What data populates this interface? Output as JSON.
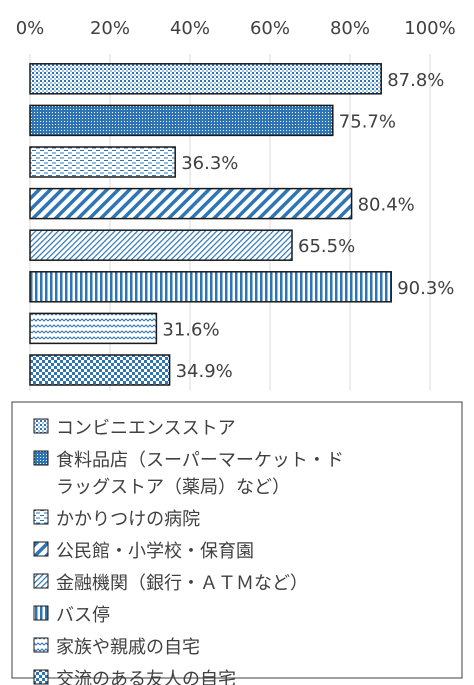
{
  "chart_data": {
    "type": "bar",
    "orientation": "horizontal",
    "xlim": [
      0,
      100
    ],
    "xticks": [
      "0%",
      "20%",
      "40%",
      "60%",
      "80%",
      "100%"
    ],
    "tick_values": [
      0,
      20,
      40,
      60,
      80,
      100
    ],
    "grid": true,
    "legend_position": "bottom",
    "categories": [
      "コンビニエンスストア",
      "食料品店（スーパーマーケット・ドラッグストア（薬局）など）",
      "かかりつけの病院",
      "公民館・小学校・保育園",
      "金融機関（銀行・ＡＴＭなど）",
      "バス停",
      "家族や親戚の自宅",
      "交流のある友人の自宅"
    ],
    "legend_lines": [
      [
        "コンビニエンスストア"
      ],
      [
        "食料品店（スーパーマーケット・ド",
        "ラッグストア（薬局）など）"
      ],
      [
        "かかりつけの病院"
      ],
      [
        "公民館・小学校・保育園"
      ],
      [
        "金融機関（銀行・ＡＴＭなど）"
      ],
      [
        "バス停"
      ],
      [
        "家族や親戚の自宅"
      ],
      [
        "交流のある友人の自宅"
      ]
    ],
    "values": [
      87.8,
      75.7,
      36.3,
      80.4,
      65.5,
      90.3,
      31.6,
      34.9
    ],
    "value_labels": [
      "87.8%",
      "75.7%",
      "36.3%",
      "80.4%",
      "65.5%",
      "90.3%",
      "31.6%",
      "34.9%"
    ],
    "patterns": [
      "dots",
      "dense-dots",
      "dashes",
      "wide-diagonal",
      "narrow-diagonal",
      "vertical",
      "waves",
      "checker"
    ],
    "colors": {
      "primary": "#2e75b6",
      "fill_dark": "#3d7dc4",
      "outline": "#1a1a1a",
      "grid": "#d9d9d9"
    }
  }
}
